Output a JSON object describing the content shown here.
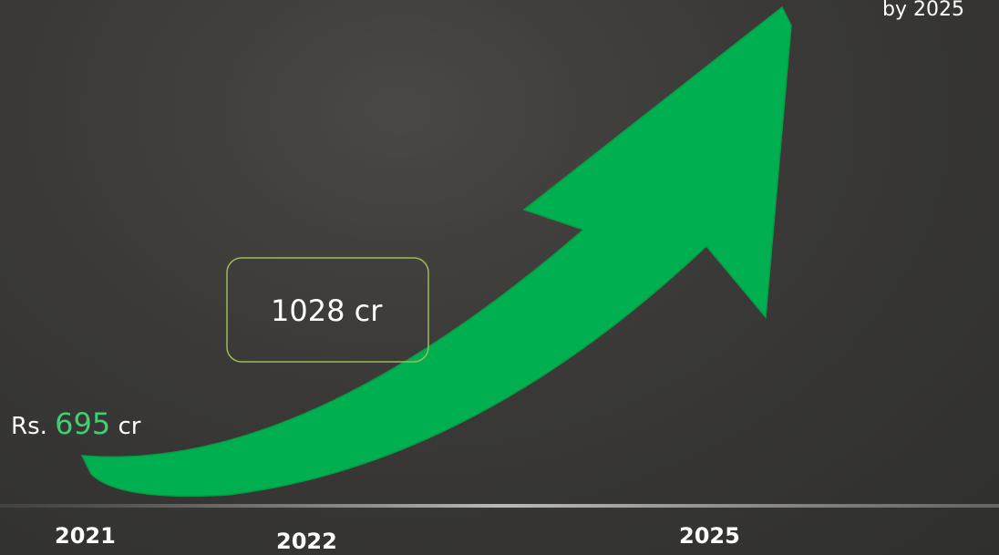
{
  "end_label": "by 2025",
  "middle_label": "1028 cr",
  "start_label": {
    "prefix": "Rs.",
    "value": 695,
    "unit": "cr"
  },
  "timeline": [
    "2021",
    "2022",
    "2025"
  ]
}
